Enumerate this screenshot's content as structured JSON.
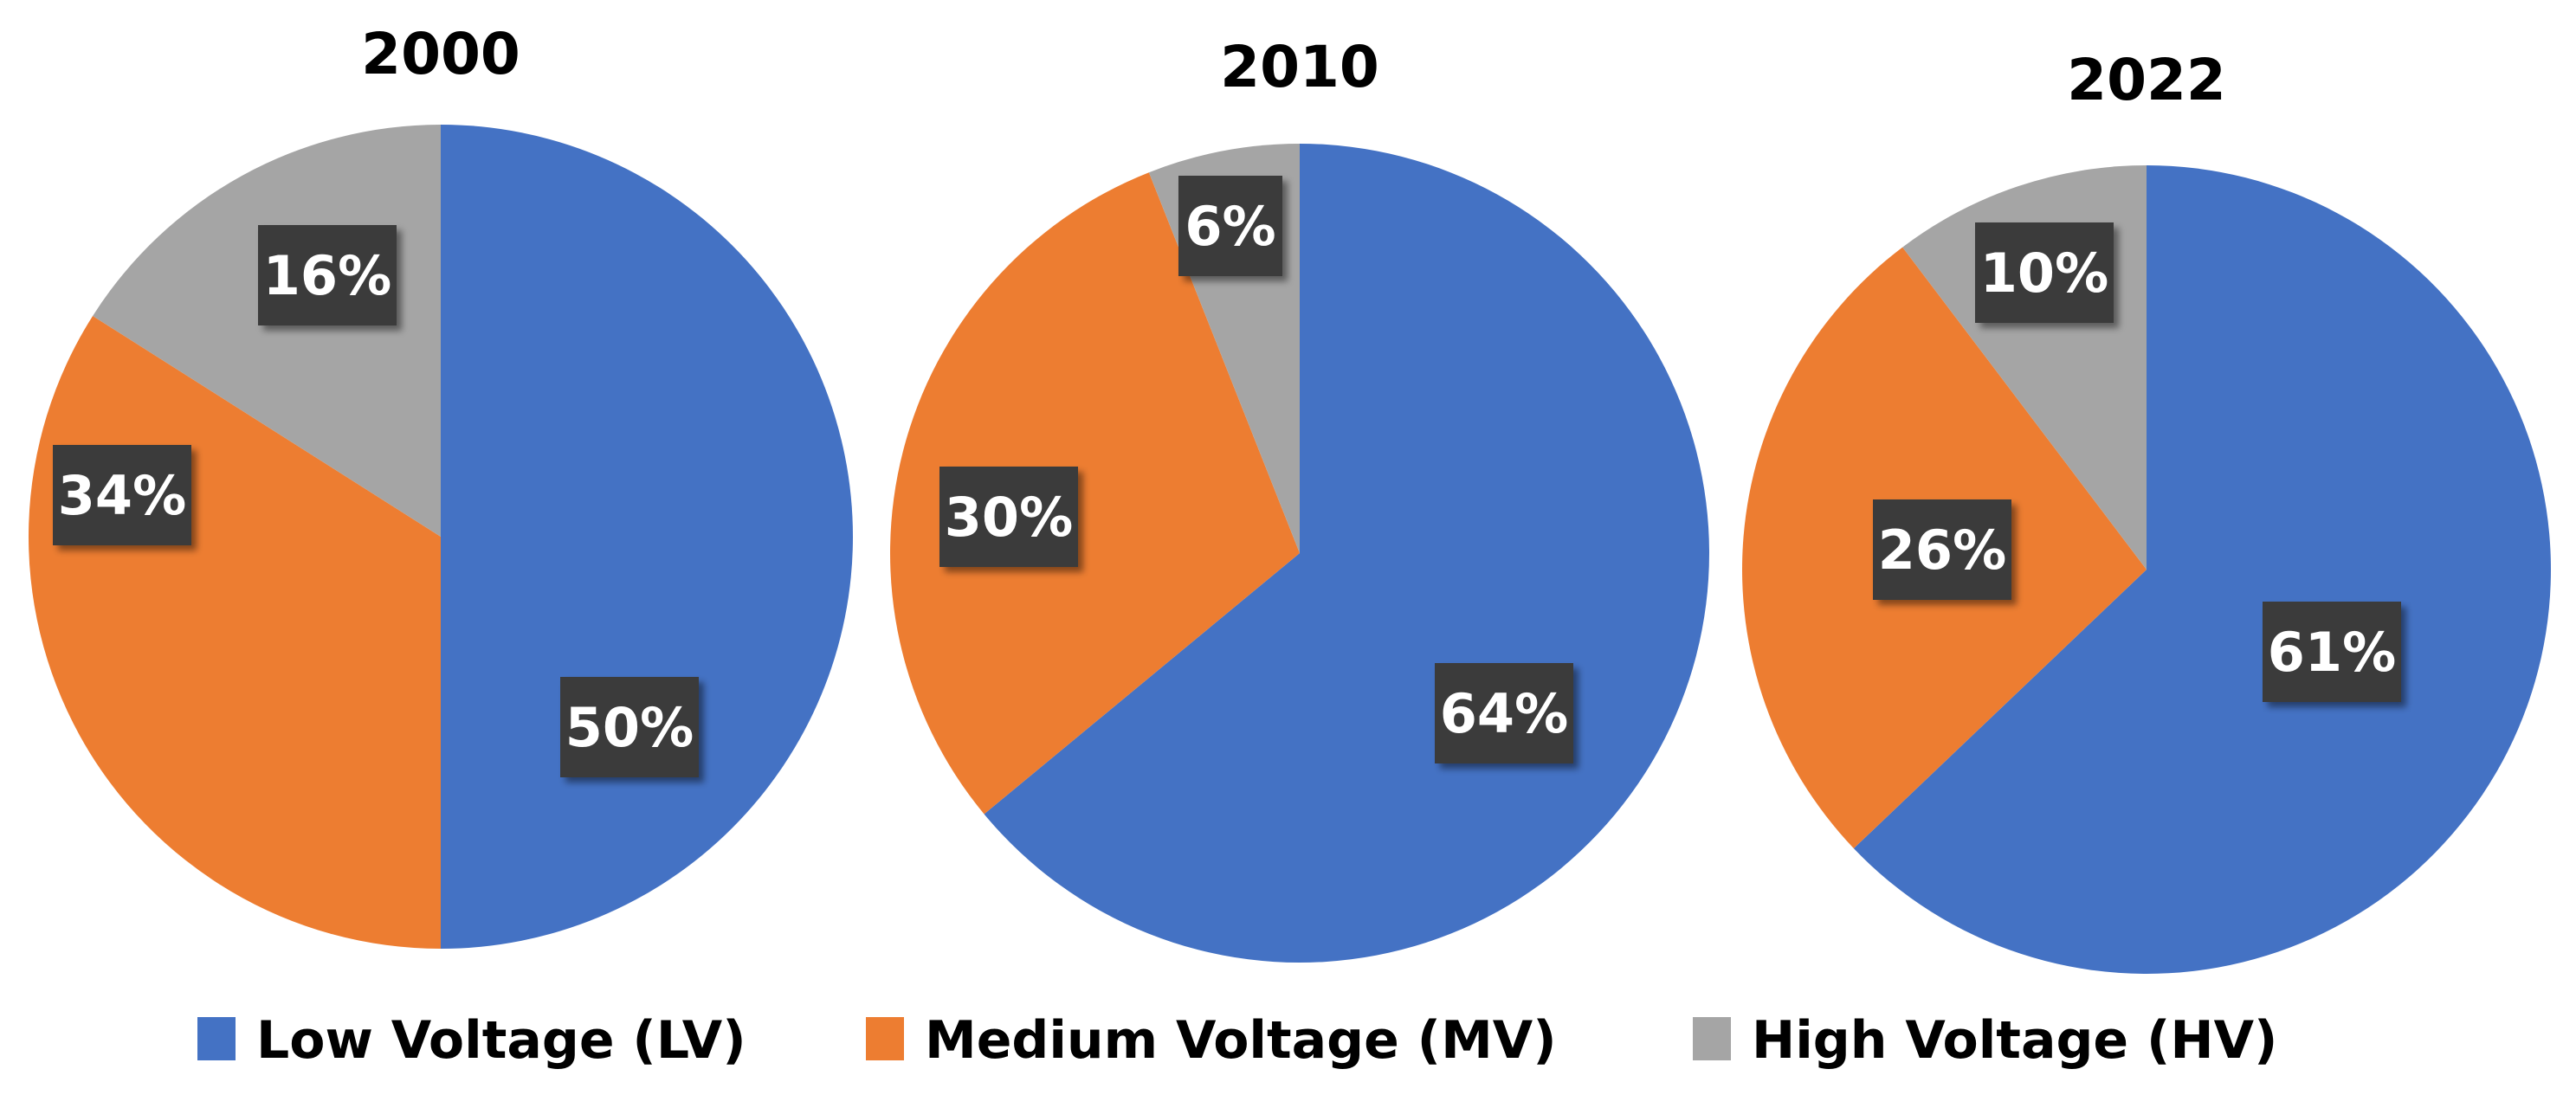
{
  "chart_data": [
    {
      "type": "pie",
      "title": "2000",
      "categories": [
        "Low Voltage (LV)",
        "Medium Voltage (MV)",
        "High Voltage (HV)"
      ],
      "values": [
        50,
        34,
        16
      ],
      "data_labels": [
        "50%",
        "34%",
        "16%"
      ]
    },
    {
      "type": "pie",
      "title": "2010",
      "categories": [
        "Low Voltage (LV)",
        "Medium Voltage (MV)",
        "High Voltage (HV)"
      ],
      "values": [
        64,
        30,
        6
      ],
      "data_labels": [
        "64%",
        "30%",
        "6%"
      ]
    },
    {
      "type": "pie",
      "title": "2022",
      "categories": [
        "Low Voltage (LV)",
        "Medium Voltage (MV)",
        "High Voltage (HV)"
      ],
      "values": [
        61,
        26,
        10
      ],
      "data_labels": [
        "61%",
        "26%",
        "10%"
      ]
    }
  ],
  "legend": {
    "placement": "bottom",
    "items": [
      {
        "label": "Low Voltage (LV)",
        "color": "#4472C4"
      },
      {
        "label": "Medium Voltage (MV)",
        "color": "#ED7D31"
      },
      {
        "label": "High Voltage (HV)",
        "color": "#A5A5A5"
      }
    ]
  },
  "label_box_color": "#3A3A3A"
}
